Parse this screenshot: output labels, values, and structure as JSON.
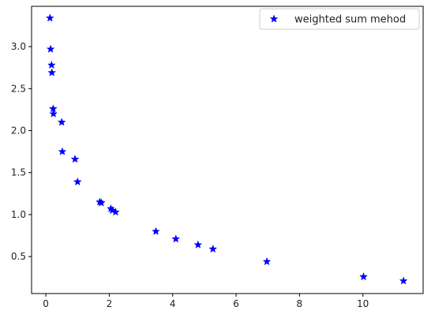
{
  "chart_data": {
    "type": "scatter",
    "title": "",
    "xlabel": "",
    "ylabel": "",
    "xlim": [
      -0.45,
      11.9
    ],
    "ylim": [
      0.06,
      3.48
    ],
    "x_ticks": [
      0,
      2,
      4,
      6,
      8,
      10
    ],
    "x_tick_labels": [
      "0",
      "2",
      "4",
      "6",
      "8",
      "10"
    ],
    "y_ticks": [
      0.5,
      1.0,
      1.5,
      2.0,
      2.5,
      3.0
    ],
    "y_tick_labels": [
      "0.5",
      "1.0",
      "1.5",
      "2.0",
      "2.5",
      "3.0"
    ],
    "grid": false,
    "legend": {
      "placement": "top-right",
      "entries": [
        {
          "label": "weighted sum mehod",
          "marker": "star",
          "color": "#0000ff"
        }
      ]
    },
    "series": [
      {
        "name": "weighted sum mehod",
        "color": "#0000ff",
        "marker": "star",
        "points": [
          {
            "x": 0.13,
            "y": 3.34
          },
          {
            "x": 0.15,
            "y": 2.97
          },
          {
            "x": 0.18,
            "y": 2.78
          },
          {
            "x": 0.19,
            "y": 2.69
          },
          {
            "x": 0.23,
            "y": 2.26
          },
          {
            "x": 0.24,
            "y": 2.2
          },
          {
            "x": 0.5,
            "y": 2.1
          },
          {
            "x": 0.52,
            "y": 1.75
          },
          {
            "x": 0.92,
            "y": 1.66
          },
          {
            "x": 1.0,
            "y": 1.39
          },
          {
            "x": 1.7,
            "y": 1.15
          },
          {
            "x": 1.75,
            "y": 1.14
          },
          {
            "x": 2.05,
            "y": 1.07
          },
          {
            "x": 2.1,
            "y": 1.05
          },
          {
            "x": 2.2,
            "y": 1.03
          },
          {
            "x": 3.47,
            "y": 0.8
          },
          {
            "x": 4.1,
            "y": 0.71
          },
          {
            "x": 4.8,
            "y": 0.64
          },
          {
            "x": 5.27,
            "y": 0.59
          },
          {
            "x": 6.97,
            "y": 0.44
          },
          {
            "x": 10.02,
            "y": 0.26
          },
          {
            "x": 11.28,
            "y": 0.21
          }
        ]
      }
    ]
  }
}
